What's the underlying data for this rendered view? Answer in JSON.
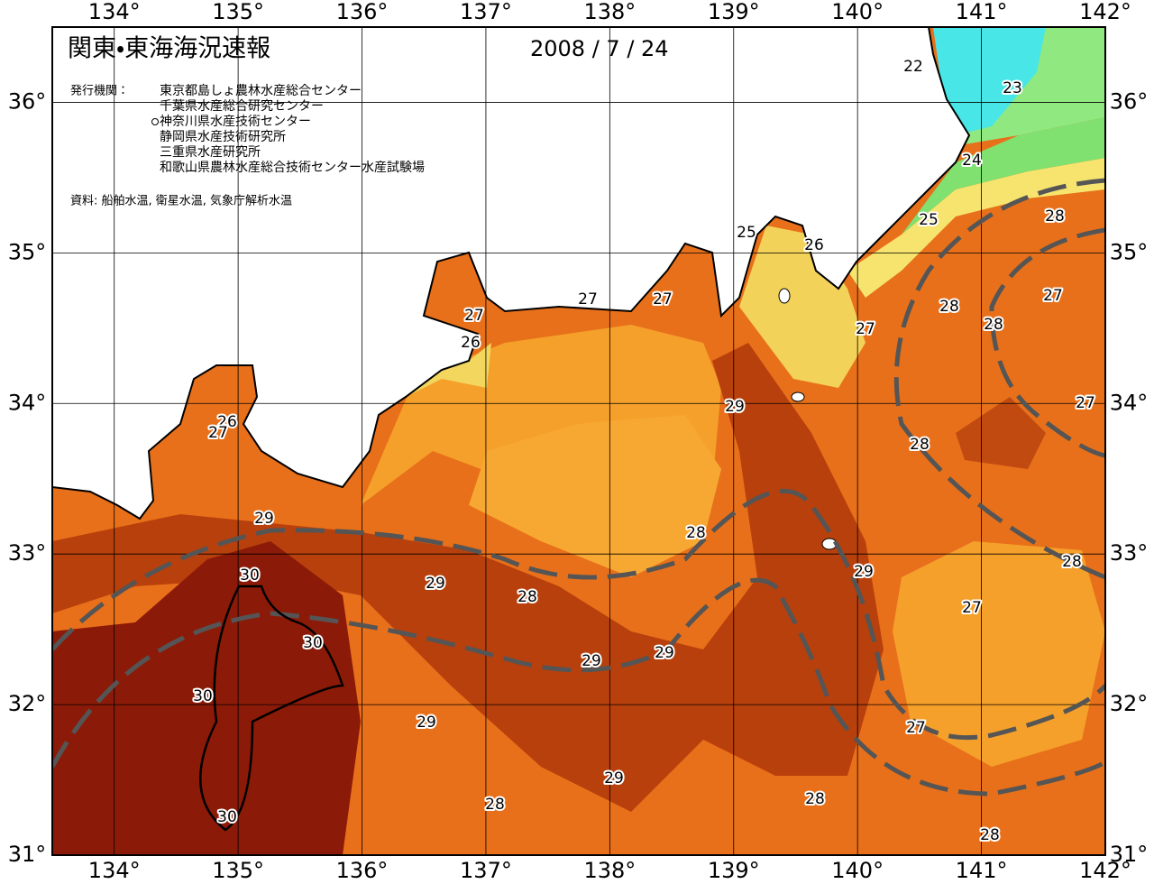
{
  "header": {
    "title": "関東・東海海況速報",
    "date": "2008 / 7 / 24",
    "publisher_label": "発行機関：",
    "publishers": [
      "東京都島しょ農林水産総合センター",
      "千葉県水産総合研究センター",
      "神奈川県水産技術センター",
      "静岡県水産技術研究所",
      "三重県水産研究所",
      "和歌山県農林水産総合技術センター水産試験場"
    ],
    "source": "資料: 船舶水温, 衛星水温, 気象庁解析水温"
  },
  "map": {
    "lon_range": [
      133.5,
      142
    ],
    "lat_range": [
      31,
      36.5
    ],
    "lon_ticks": [
      {
        "value": 134,
        "label": "134°"
      },
      {
        "value": 135,
        "label": "135°"
      },
      {
        "value": 136,
        "label": "136°"
      },
      {
        "value": 137,
        "label": "137°"
      },
      {
        "value": 138,
        "label": "138°"
      },
      {
        "value": 139,
        "label": "139°"
      },
      {
        "value": 140,
        "label": "140°"
      },
      {
        "value": 141,
        "label": "141°"
      },
      {
        "value": 142,
        "label": "142°"
      }
    ],
    "lat_ticks": [
      {
        "value": 31,
        "label": "31°"
      },
      {
        "value": 32,
        "label": "32°"
      },
      {
        "value": 33,
        "label": "33°"
      },
      {
        "value": 34,
        "label": "34°"
      },
      {
        "value": 35,
        "label": "35°"
      },
      {
        "value": 36,
        "label": "36°"
      }
    ],
    "contour_labels": [
      "22",
      "23",
      "24",
      "25",
      "28",
      "25",
      "26",
      "27",
      "27",
      "27",
      "26",
      "28",
      "27",
      "28",
      "27",
      "29",
      "27",
      "26",
      "27",
      "28",
      "29",
      "28",
      "28",
      "29",
      "30",
      "29",
      "28",
      "27",
      "30",
      "29",
      "29",
      "30",
      "29",
      "27",
      "29",
      "28",
      "28",
      "30",
      "28"
    ]
  }
}
